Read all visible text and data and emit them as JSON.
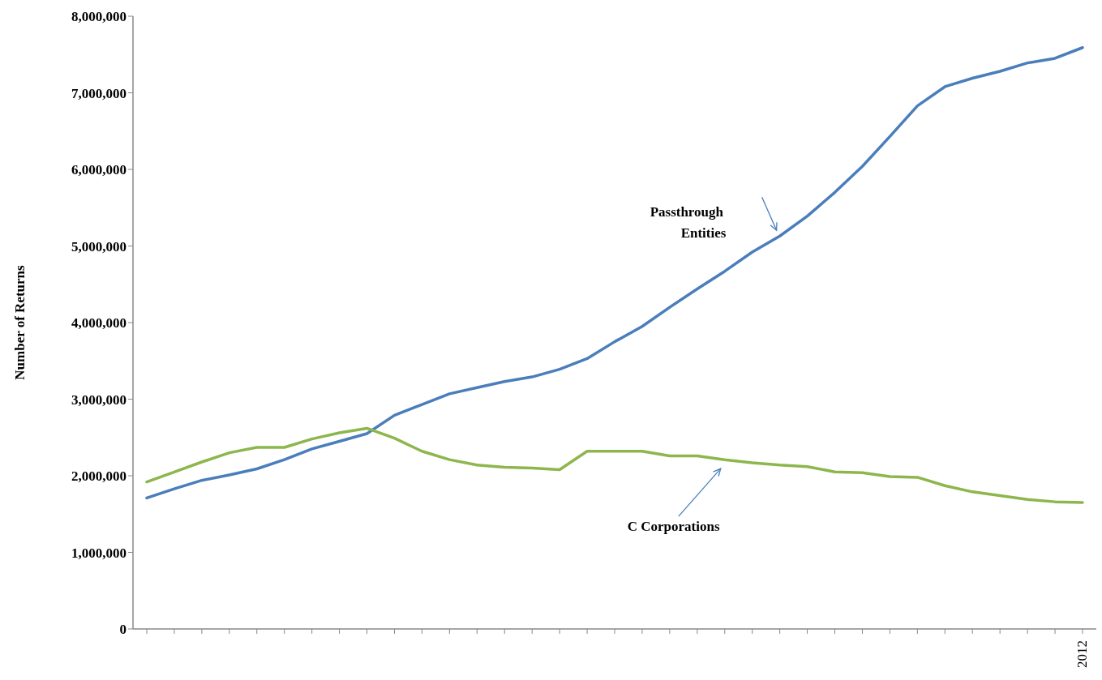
{
  "chart_data": {
    "type": "line",
    "ylabel": "Number of Returns",
    "categories": [
      null,
      null,
      null,
      null,
      null,
      null,
      null,
      null,
      null,
      null,
      null,
      null,
      null,
      null,
      null,
      null,
      null,
      null,
      null,
      null,
      null,
      null,
      null,
      null,
      null,
      null,
      null,
      null,
      null,
      null,
      null,
      null,
      null,
      null,
      "2012"
    ],
    "series": [
      {
        "name": "Passthrough Entities",
        "color": "#4a7ebb",
        "values": [
          1710000,
          1830000,
          1940000,
          2010000,
          2090000,
          2210000,
          2350000,
          2450000,
          2550000,
          2790000,
          2930000,
          3070000,
          3150000,
          3230000,
          3290000,
          3390000,
          3530000,
          3750000,
          3950000,
          4200000,
          4440000,
          4670000,
          4920000,
          5130000,
          5390000,
          5700000,
          6040000,
          6430000,
          6830000,
          7080000,
          7190000,
          7280000,
          7390000,
          7450000,
          7590000
        ]
      },
      {
        "name": "C Corporations",
        "color": "#8db64c",
        "values": [
          1920000,
          2050000,
          2180000,
          2300000,
          2370000,
          2370000,
          2480000,
          2560000,
          2620000,
          2490000,
          2320000,
          2210000,
          2140000,
          2110000,
          2100000,
          2080000,
          2320000,
          2320000,
          2320000,
          2260000,
          2260000,
          2210000,
          2170000,
          2140000,
          2120000,
          2050000,
          2040000,
          1990000,
          1980000,
          1870000,
          1790000,
          1740000,
          1690000,
          1660000,
          1650000
        ]
      }
    ],
    "ylim": [
      0,
      8000000
    ],
    "yticks": [
      0,
      {
        "value": 1000000,
        "label": "1,000,000"
      },
      {
        "value": 2000000,
        "label": "2,000,000"
      },
      {
        "value": 3000000,
        "label": "3,000,000"
      },
      {
        "value": 4000000,
        "label": "4,000,000"
      },
      {
        "value": 5000000,
        "label": "5,000,000"
      },
      {
        "value": 6000000,
        "label": "6,000,000"
      },
      {
        "value": 7000000,
        "label": "7,000,000"
      },
      {
        "value": 8000000,
        "label": "8,000,000"
      }
    ],
    "grid": false,
    "legend": false,
    "marker": "none",
    "line_style": "solid"
  }
}
